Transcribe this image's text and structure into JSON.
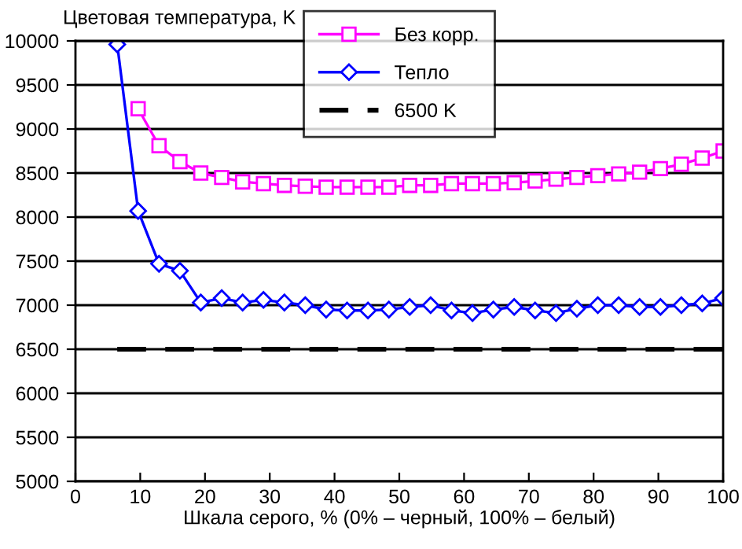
{
  "chart_data": {
    "type": "line",
    "ylabel": "Цветовая температура, K",
    "xlabel": "Шкала серого, % (0% – черный, 100% – белый)",
    "xlim": [
      0,
      100
    ],
    "xticks": [
      0,
      10,
      20,
      30,
      40,
      50,
      60,
      70,
      80,
      90,
      100
    ],
    "ylim": [
      5000,
      10000
    ],
    "yticks": [
      5000,
      5500,
      6000,
      6500,
      7000,
      7500,
      8000,
      8500,
      9000,
      9500,
      10000
    ],
    "grid": "y",
    "legend": "top",
    "x": [
      6.45,
      9.68,
      12.9,
      16.13,
      19.35,
      22.58,
      25.81,
      29.03,
      32.26,
      35.48,
      38.71,
      41.94,
      45.16,
      48.39,
      51.61,
      54.84,
      58.06,
      61.29,
      64.52,
      67.74,
      70.97,
      74.19,
      77.42,
      80.65,
      83.87,
      87.1,
      90.32,
      93.55,
      96.77,
      100
    ],
    "series": [
      {
        "name": "Без корр.",
        "color": "#ff00ff",
        "marker": "square",
        "line_style": "solid",
        "values": [
          null,
          9230,
          8810,
          8630,
          8500,
          8450,
          8400,
          8380,
          8360,
          8350,
          8340,
          8340,
          8340,
          8340,
          8360,
          8360,
          8380,
          8380,
          8380,
          8390,
          8410,
          8430,
          8450,
          8470,
          8490,
          8510,
          8550,
          8600,
          8670,
          8750
        ]
      },
      {
        "name": "Тепло",
        "color": "#0000ff",
        "marker": "diamond",
        "line_style": "solid",
        "values": [
          9960,
          8070,
          7470,
          7390,
          7030,
          7080,
          7030,
          7060,
          7030,
          7000,
          6950,
          6940,
          6940,
          6950,
          6980,
          7000,
          6940,
          6910,
          6950,
          6980,
          6940,
          6910,
          6960,
          7000,
          7000,
          6980,
          6980,
          7000,
          7020,
          7080
        ]
      },
      {
        "name": "6500 K",
        "color": "#000000",
        "marker": "none",
        "line_style": "dashed",
        "values": [
          6500,
          6500,
          6500,
          6500,
          6500,
          6500,
          6500,
          6500,
          6500,
          6500,
          6500,
          6500,
          6500,
          6500,
          6500,
          6500,
          6500,
          6500,
          6500,
          6500,
          6500,
          6500,
          6500,
          6500,
          6500,
          6500,
          6500,
          6500,
          6500,
          6500
        ]
      }
    ]
  }
}
